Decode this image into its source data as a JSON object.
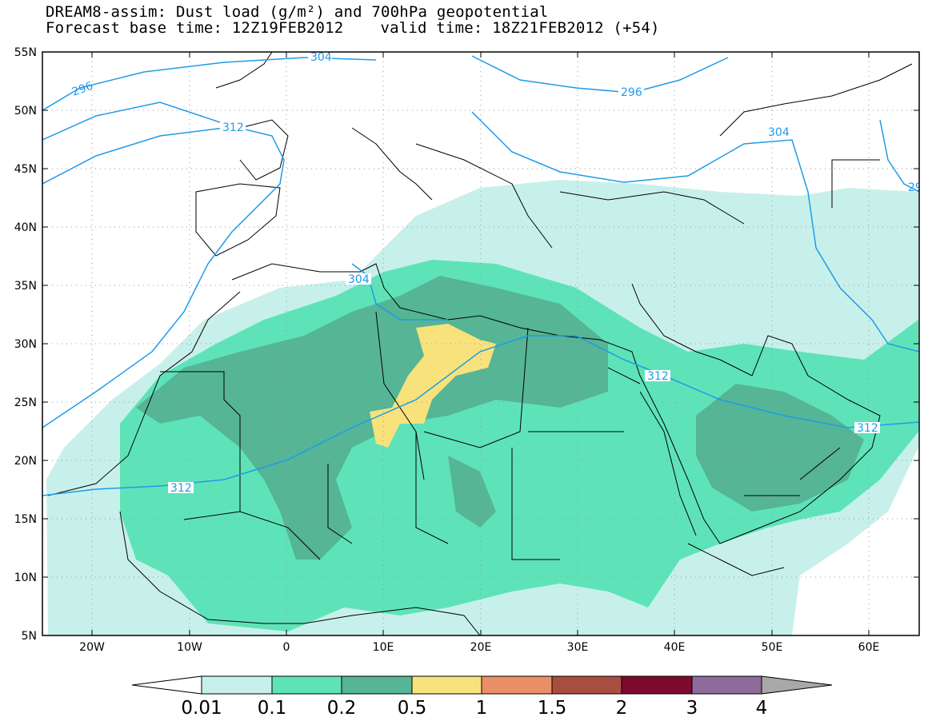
{
  "title": {
    "line1": "DREAM8-assim: Dust load (g/m²) and 700hPa geopotential",
    "base_label": "Forecast base time: 12Z19FEB2012",
    "valid_label": "valid time: 18Z21FEB2012 (+54)"
  },
  "axes": {
    "lat_ticks": [
      "55N",
      "50N",
      "45N",
      "40N",
      "35N",
      "30N",
      "25N",
      "20N",
      "15N",
      "10N",
      "5N"
    ],
    "lon_ticks": [
      "20W",
      "10W",
      "0",
      "10E",
      "20E",
      "30E",
      "40E",
      "50E",
      "60E"
    ]
  },
  "contour_labels": [
    "304",
    "296",
    "312",
    "296",
    "304",
    "304",
    "312",
    "312",
    "29"
  ],
  "colorbar": {
    "levels": [
      "0.01",
      "0.1",
      "0.2",
      "0.5",
      "1",
      "1.5",
      "2",
      "3",
      "4"
    ],
    "colors": [
      "#c8f0ea",
      "#5ee3b9",
      "#55b595",
      "#f7e27c",
      "#ea9068",
      "#a84e40",
      "#7d0a2d",
      "#8f6b9c"
    ],
    "low_color": "#ffffff",
    "high_color": "#a8a8a8"
  },
  "chart_data": {
    "type": "map",
    "projection": "lat-lon",
    "lon_range": [
      -25,
      65
    ],
    "lat_range": [
      5,
      55
    ],
    "field": "dust_load_g_m2",
    "contour_field": "700hPa_geopotential_dam",
    "contour_levels": [
      296,
      304,
      312
    ],
    "fill_levels": [
      0.01,
      0.1,
      0.2,
      0.5,
      1,
      1.5,
      2,
      3,
      4
    ]
  }
}
